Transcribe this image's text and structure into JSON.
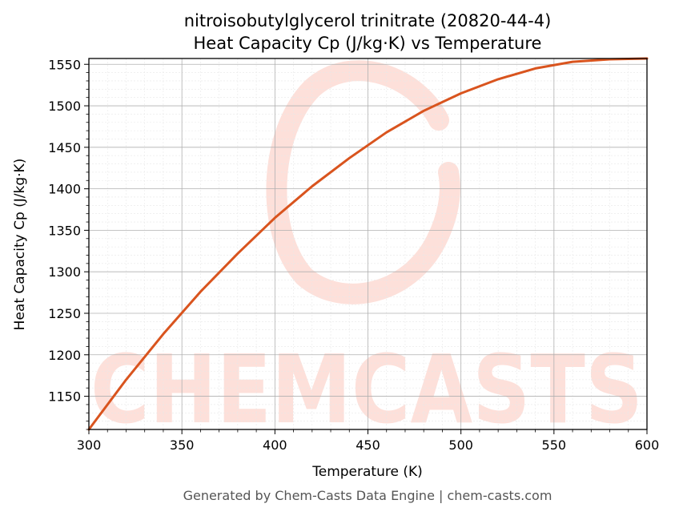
{
  "chart_data": {
    "type": "line",
    "title": "nitroisobutylglycerol trinitrate (20820-44-4)",
    "subtitle": "Heat Capacity Cp (J/kg·K) vs Temperature",
    "xlabel": "Temperature (K)",
    "ylabel": "Heat Capacity Cp (J/kg·K)",
    "xlim": [
      300,
      600
    ],
    "ylim": [
      1110,
      1557
    ],
    "xticks": [
      300,
      350,
      400,
      450,
      500,
      550,
      600
    ],
    "yticks": [
      1150,
      1200,
      1250,
      1300,
      1350,
      1400,
      1450,
      1500,
      1550
    ],
    "grid": true,
    "series": [
      {
        "color": "#d9541e",
        "x": [
          300,
          320,
          340,
          360,
          380,
          400,
          420,
          440,
          460,
          480,
          500,
          520,
          540,
          560,
          580,
          600
        ],
        "y": [
          1110,
          1170,
          1225,
          1276,
          1322,
          1365,
          1403,
          1437,
          1468,
          1494,
          1515,
          1532,
          1545,
          1553,
          1556,
          1557
        ]
      }
    ]
  },
  "watermark": {
    "text": "CHEMCASTS",
    "color": "#fde0da"
  },
  "footer": "Generated by Chem-Casts Data Engine | chem-casts.com"
}
